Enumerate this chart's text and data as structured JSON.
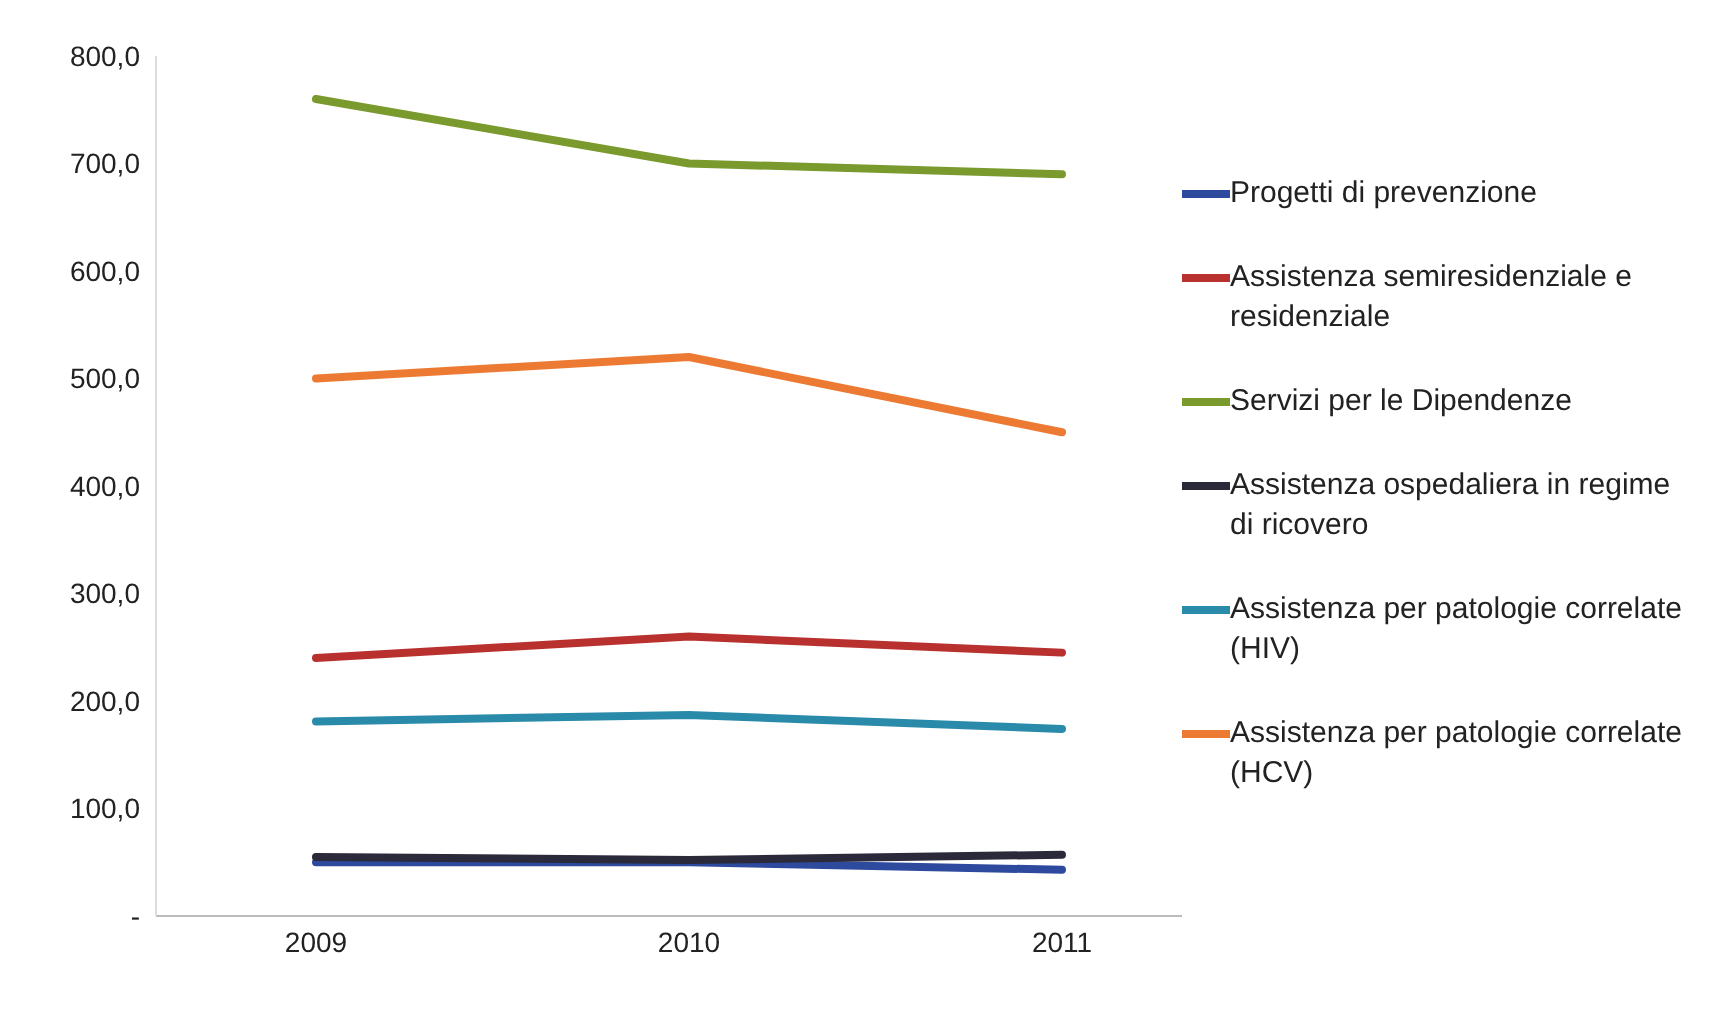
{
  "chart_data": {
    "type": "line",
    "categories": [
      "2009",
      "2010",
      "2011"
    ],
    "series": [
      {
        "name": "Progetti di prevenzione",
        "color": "#2e4a9e",
        "values": [
          50,
          50,
          43
        ]
      },
      {
        "name": "Assistenza semiresidenziale e residenziale",
        "color": "#b8312f",
        "values": [
          240,
          260,
          245
        ]
      },
      {
        "name": "Servizi per le Dipendenze",
        "color": "#7a9a2e",
        "values": [
          760,
          700,
          690
        ]
      },
      {
        "name": "Assistenza ospedaliera in regime di ricovero",
        "color": "#2a2a3a",
        "values": [
          55,
          52,
          57
        ]
      },
      {
        "name": "Assistenza per patologie correlate (HIV)",
        "color": "#2a8aaa",
        "values": [
          181,
          187,
          174
        ]
      },
      {
        "name": "Assistenza per patologie correlate (HCV)",
        "color": "#ec7a32",
        "values": [
          500,
          520,
          450
        ]
      }
    ],
    "ylim": [
      0,
      800
    ],
    "yticks": [
      {
        "value": 0,
        "label": "-"
      },
      {
        "value": 100,
        "label": "100,0"
      },
      {
        "value": 200,
        "label": "200,0"
      },
      {
        "value": 300,
        "label": "300,0"
      },
      {
        "value": 400,
        "label": "400,0"
      },
      {
        "value": 500,
        "label": "500,0"
      },
      {
        "value": 600,
        "label": "600,0"
      },
      {
        "value": 700,
        "label": "700,0"
      },
      {
        "value": 800,
        "label": "800,0"
      }
    ],
    "grid": false,
    "legend": "right",
    "marker": "none",
    "line_style": "solid"
  }
}
